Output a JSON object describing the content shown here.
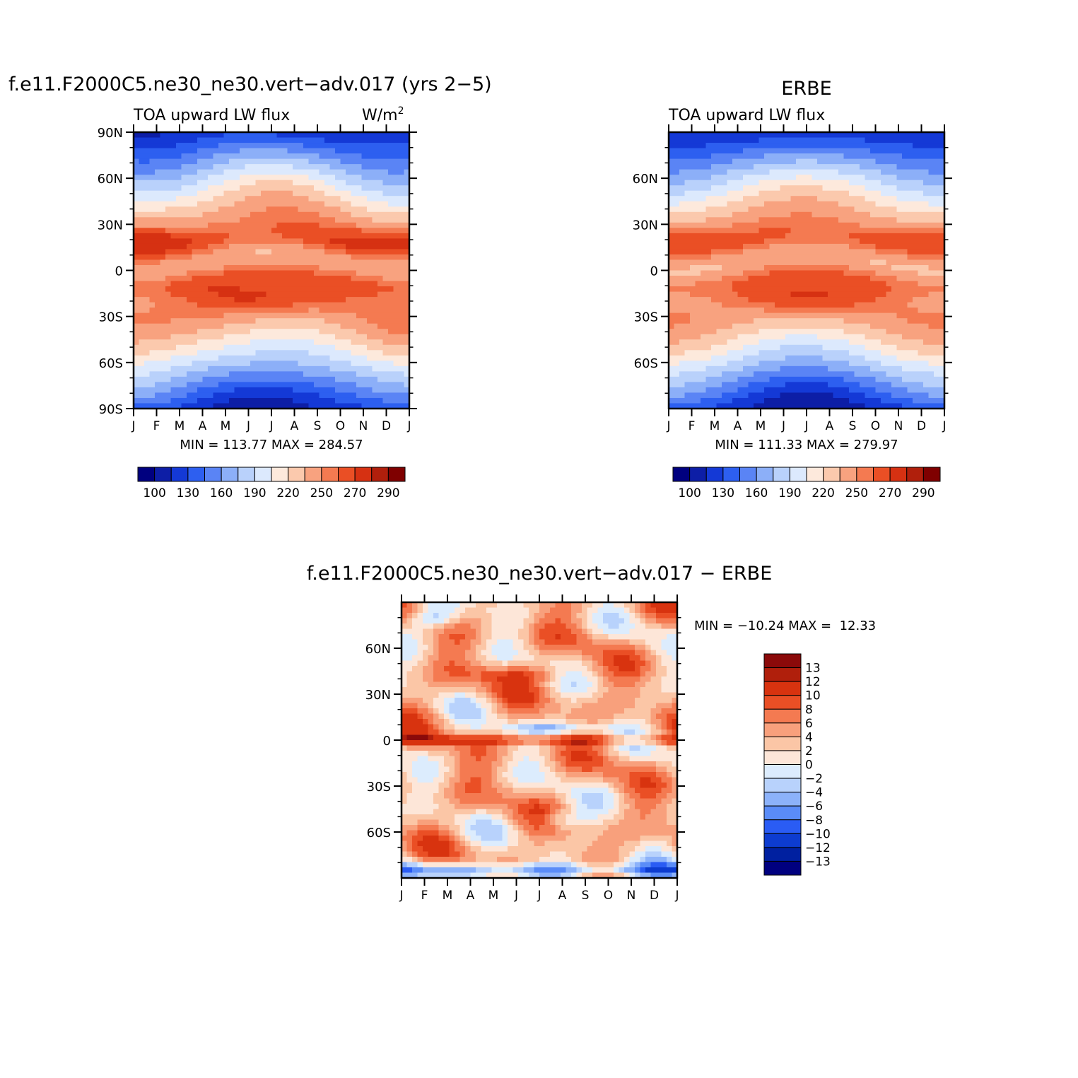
{
  "figure": {
    "panel_a_title": "f.e11.F2000C5.ne30_ne30.vert−adv.017 (yrs 2−5)",
    "panel_b_title": "ERBE",
    "panel_c_title": "f.e11.F2000C5.ne30_ne30.vert−adv.017 − ERBE",
    "variable_label": "TOA upward LW flux",
    "units_label": "W/m",
    "units_superscript": "2"
  },
  "colors": {
    "abs_palette": [
      "#00007f",
      "#0d1ea6",
      "#1439d6",
      "#2d5ff0",
      "#5a84f5",
      "#8caff8",
      "#b9d1fb",
      "#dce9fd",
      "#fde9dc",
      "#fbc9ad",
      "#f8a27f",
      "#f47a51",
      "#ea4f25",
      "#d63112",
      "#b01f0c",
      "#7f0000"
    ],
    "diff_palette": [
      "#00007f",
      "#0020a0",
      "#0d3cd0",
      "#2a5cf4",
      "#5a8cf8",
      "#8cb2fa",
      "#b8d2fc",
      "#dcecfd",
      "#fde6d8",
      "#fbc6a6",
      "#f8a07c",
      "#f47a51",
      "#ea4f25",
      "#d8330f",
      "#b01f0c",
      "#8b0a0a"
    ]
  },
  "chart_data": [
    {
      "id": "model",
      "type": "heatmap",
      "title": "f.e11.F2000C5.ne30_ne30.vert−adv.017 (yrs 2−5)",
      "subtitle_left": "TOA upward LW flux",
      "subtitle_right": "W/m²",
      "x_tick_labels": [
        "J",
        "F",
        "M",
        "A",
        "M",
        "J",
        "J",
        "A",
        "S",
        "O",
        "N",
        "D",
        "J"
      ],
      "y_range": [
        -90,
        90
      ],
      "y_ticks": [
        90,
        60,
        30,
        0,
        -30,
        -60,
        -90
      ],
      "y_tick_labels": [
        "90N",
        "60N",
        "30N",
        "0",
        "30S",
        "60S",
        "90S"
      ],
      "stats_text": "MIN = 113.77 MAX = 284.57",
      "colorbar_labels": [
        "100",
        "130",
        "160",
        "190",
        "220",
        "250",
        "270",
        "290"
      ],
      "colorbar_levels": [
        100,
        115,
        130,
        145,
        160,
        175,
        190,
        205,
        220,
        235,
        250,
        260,
        270,
        280,
        290
      ],
      "min": 113.77,
      "max": 284.57
    },
    {
      "id": "obs",
      "type": "heatmap",
      "title": "ERBE",
      "subtitle_left": "TOA upward LW flux",
      "x_tick_labels": [
        "J",
        "F",
        "M",
        "A",
        "M",
        "J",
        "J",
        "A",
        "S",
        "O",
        "N",
        "D",
        "J"
      ],
      "y_range": [
        -90,
        90
      ],
      "y_ticks": [
        60,
        30,
        0,
        -30,
        -60
      ],
      "y_tick_labels": [
        "60N",
        "30N",
        "0",
        "30S",
        "60S"
      ],
      "stats_text": "MIN = 111.33 MAX = 279.97",
      "colorbar_labels": [
        "100",
        "130",
        "160",
        "190",
        "220",
        "250",
        "270",
        "290"
      ],
      "colorbar_levels": [
        100,
        115,
        130,
        145,
        160,
        175,
        190,
        205,
        220,
        235,
        250,
        260,
        270,
        280,
        290
      ],
      "min": 111.33,
      "max": 279.97
    },
    {
      "id": "diff",
      "type": "heatmap",
      "title": "f.e11.F2000C5.ne30_ne30.vert−adv.017 − ERBE",
      "x_tick_labels": [
        "J",
        "F",
        "M",
        "A",
        "M",
        "J",
        "J",
        "A",
        "S",
        "O",
        "N",
        "D",
        "J"
      ],
      "y_range": [
        -90,
        90
      ],
      "y_ticks": [
        60,
        30,
        0,
        -30,
        -60
      ],
      "y_tick_labels": [
        "60N",
        "30N",
        "0",
        "30S",
        "60S"
      ],
      "stats_text": "MIN = −10.24 MAX =  12.33",
      "colorbar_labels": [
        "13",
        "12",
        "10",
        "8",
        "6",
        "4",
        "2",
        "0",
        "−2",
        "−4",
        "−6",
        "−8",
        "−10",
        "−12",
        "−13"
      ],
      "colorbar_levels": [
        -13,
        -12,
        -10,
        -8,
        -6,
        -4,
        -2,
        0,
        2,
        4,
        6,
        8,
        10,
        12,
        13
      ],
      "min": -10.24,
      "max": 12.33
    }
  ]
}
